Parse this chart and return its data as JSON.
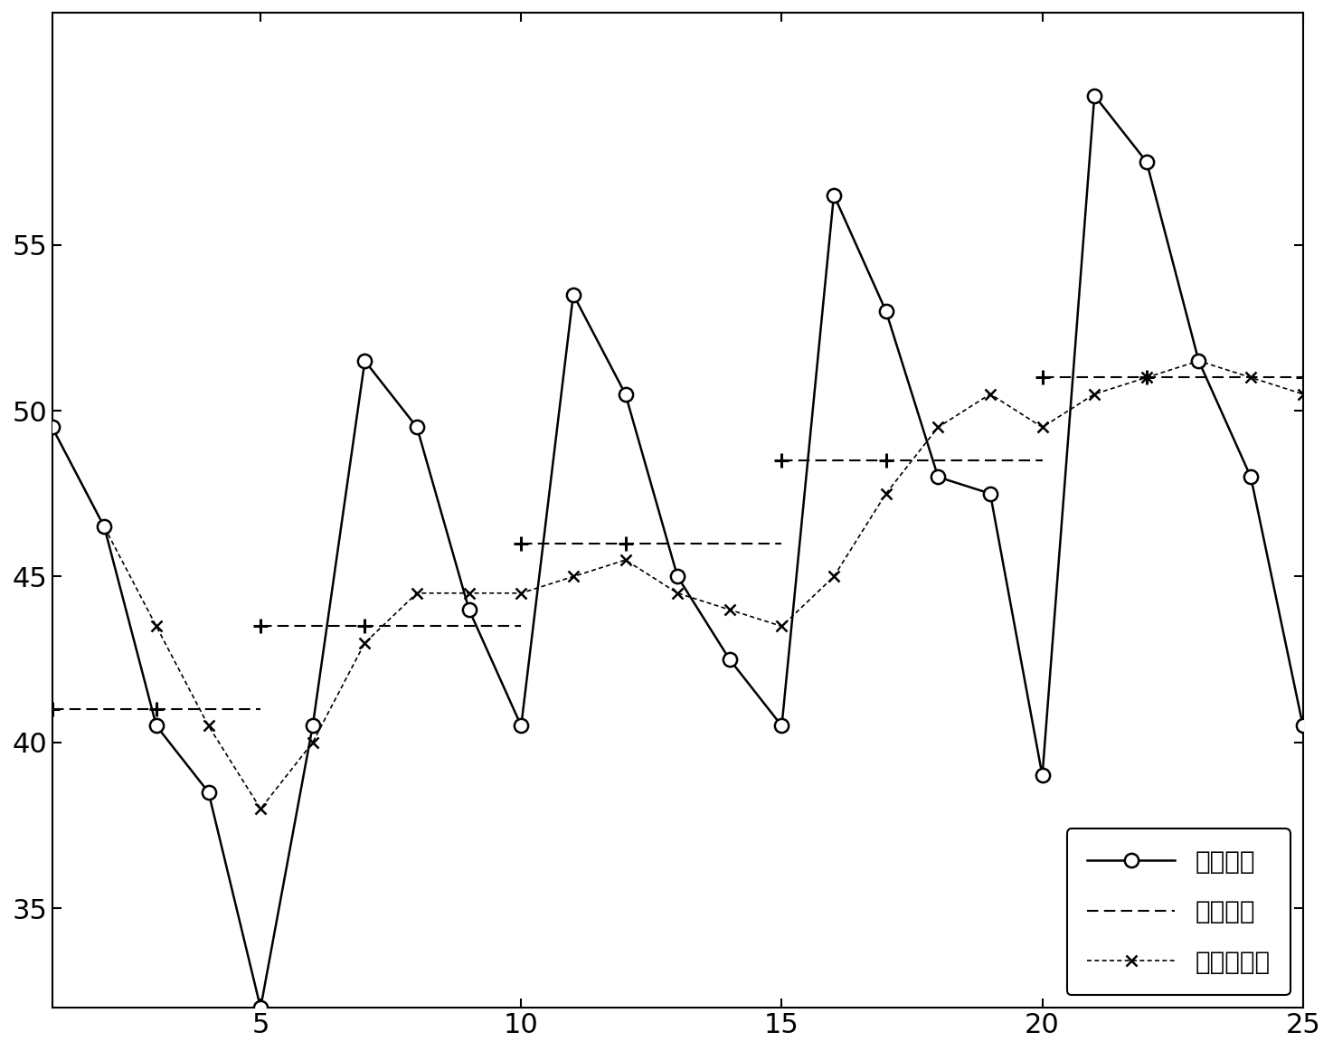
{
  "measured_x": [
    1,
    2,
    3,
    4,
    5,
    6,
    7,
    8,
    9,
    10,
    11,
    12,
    13,
    14,
    15,
    16,
    17,
    18,
    19,
    20,
    21,
    22,
    23,
    24,
    25
  ],
  "measured_y": [
    49.5,
    46.5,
    40.5,
    38.5,
    32.0,
    40.5,
    51.5,
    49.5,
    44.0,
    40.5,
    53.5,
    50.5,
    45.0,
    42.5,
    40.5,
    56.5,
    53.0,
    48.0,
    47.5,
    39.0,
    59.5,
    57.5,
    51.5,
    48.0,
    40.5
  ],
  "linear_segments": [
    [
      [
        1,
        5
      ],
      [
        41.0,
        41.0
      ]
    ],
    [
      [
        5,
        10
      ],
      [
        43.5,
        43.5
      ]
    ],
    [
      [
        10,
        15
      ],
      [
        46.0,
        46.0
      ]
    ],
    [
      [
        15,
        20
      ],
      [
        48.5,
        48.5
      ]
    ],
    [
      [
        20,
        25
      ],
      [
        51.0,
        51.0
      ]
    ]
  ],
  "linear_markers_x": [
    1,
    3,
    5,
    7,
    10,
    12,
    15,
    17,
    20,
    22,
    25
  ],
  "linear_markers_y": [
    41.0,
    41.0,
    43.5,
    43.5,
    46.0,
    46.0,
    48.5,
    48.5,
    51.0,
    51.0,
    51.0
  ],
  "poly_x": [
    1,
    2,
    3,
    4,
    5,
    6,
    7,
    8,
    9,
    10,
    11,
    12,
    13,
    14,
    15,
    16,
    17,
    18,
    19,
    20,
    21,
    22,
    23,
    24,
    25
  ],
  "poly_y": [
    49.5,
    46.5,
    43.5,
    40.5,
    38.0,
    40.0,
    43.0,
    44.5,
    44.5,
    44.5,
    45.0,
    45.5,
    44.5,
    44.0,
    43.5,
    45.0,
    47.5,
    49.5,
    50.5,
    49.5,
    50.5,
    51.0,
    51.5,
    51.0,
    50.5
  ],
  "xlim": [
    1,
    25
  ],
  "ylim": [
    32,
    62
  ],
  "xticks": [
    5,
    10,
    15,
    20,
    25
  ],
  "yticks": [
    35,
    40,
    45,
    50,
    55
  ],
  "legend_labels": [
    "测量速率",
    "线性回归",
    "多项式回归"
  ],
  "line_color": "#000000",
  "background_color": "#ffffff"
}
